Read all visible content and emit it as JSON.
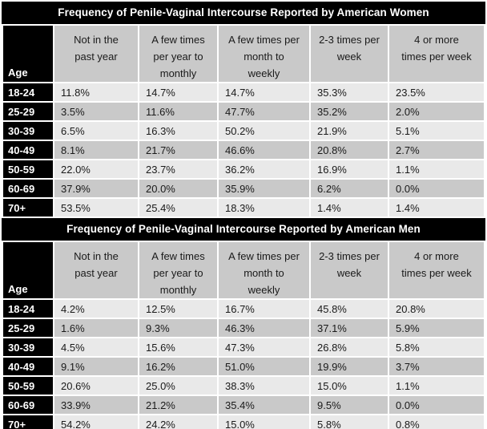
{
  "colors": {
    "title_bg": "#000000",
    "title_fg": "#ffffff",
    "header_bg": "#c9c9c9",
    "age_cell_bg": "#000000",
    "age_cell_fg": "#ffffff",
    "row_light_bg": "#e9e9e9",
    "row_dark_bg": "#c9c9c9",
    "body_text": "#1a1a1a",
    "gap": "#ffffff"
  },
  "chart_data": [
    {
      "type": "table",
      "title": "Frequency of Penile-Vaginal Intercourse Reported by American Women",
      "corner_label": "Age",
      "columns": [
        "Not in the\npast year",
        "A few times\nper year to\nmonthly",
        "A few times per\nmonth to\nweekly",
        "2-3 times per\nweek",
        "4 or more\ntimes per week"
      ],
      "rows": [
        {
          "age": "18-24",
          "values": [
            "11.8%",
            "14.7%",
            "14.7%",
            "35.3%",
            "23.5%"
          ]
        },
        {
          "age": "25-29",
          "values": [
            "3.5%",
            "11.6%",
            "47.7%",
            "35.2%",
            "2.0%"
          ]
        },
        {
          "age": "30-39",
          "values": [
            "6.5%",
            "16.3%",
            "50.2%",
            "21.9%",
            "5.1%"
          ]
        },
        {
          "age": "40-49",
          "values": [
            "8.1%",
            "21.7%",
            "46.6%",
            "20.8%",
            "2.7%"
          ]
        },
        {
          "age": "50-59",
          "values": [
            "22.0%",
            "23.7%",
            "36.2%",
            "16.9%",
            "1.1%"
          ]
        },
        {
          "age": "60-69",
          "values": [
            "37.9%",
            "20.0%",
            "35.9%",
            "6.2%",
            "0.0%"
          ]
        },
        {
          "age": "70+",
          "values": [
            "53.5%",
            "25.4%",
            "18.3%",
            "1.4%",
            "1.4%"
          ]
        }
      ]
    },
    {
      "type": "table",
      "title": "Frequency of Penile-Vaginal Intercourse Reported by American Men",
      "corner_label": "Age",
      "columns": [
        "Not in the\npast year",
        "A few times\nper year to\nmonthly",
        "A few times per\nmonth to\nweekly",
        "2-3 times per\nweek",
        "4 or more\ntimes per week"
      ],
      "rows": [
        {
          "age": "18-24",
          "values": [
            "4.2%",
            "12.5%",
            "16.7%",
            "45.8%",
            "20.8%"
          ]
        },
        {
          "age": "25-29",
          "values": [
            "1.6%",
            "9.3%",
            "46.3%",
            "37.1%",
            "5.9%"
          ]
        },
        {
          "age": "30-39",
          "values": [
            "4.5%",
            "15.6%",
            "47.3%",
            "26.8%",
            "5.8%"
          ]
        },
        {
          "age": "40-49",
          "values": [
            "9.1%",
            "16.2%",
            "51.0%",
            "19.9%",
            "3.7%"
          ]
        },
        {
          "age": "50-59",
          "values": [
            "20.6%",
            "25.0%",
            "38.3%",
            "15.0%",
            "1.1%"
          ]
        },
        {
          "age": "60-69",
          "values": [
            "33.9%",
            "21.2%",
            "35.4%",
            "9.5%",
            "0.0%"
          ]
        },
        {
          "age": "70+",
          "values": [
            "54.2%",
            "24.2%",
            "15.0%",
            "5.8%",
            "0.8%"
          ]
        }
      ]
    }
  ]
}
